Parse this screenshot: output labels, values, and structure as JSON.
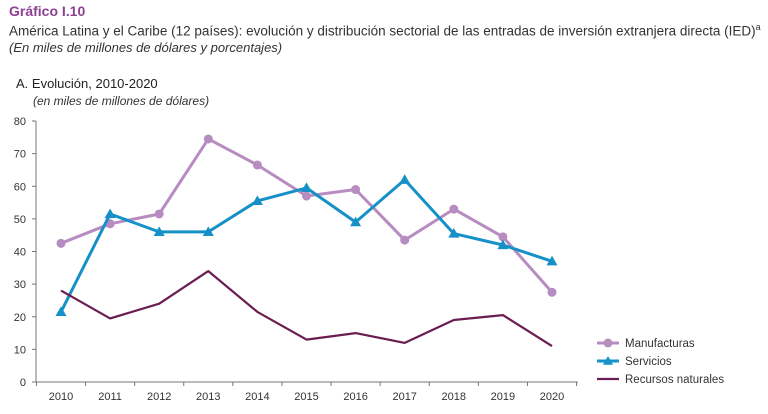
{
  "header": {
    "figure_label": "Gráfico I.10",
    "title": "América Latina y el Caribe (12 países): evolución y distribución sectorial de las entradas de inversión extranjera directa (IED)",
    "title_superscript": "a",
    "subtitle": "(En miles de millones de dólares y porcentajes)"
  },
  "panel": {
    "title": "A. Evolución, 2010-2020",
    "subtitle": "(en miles de millones de dólares)"
  },
  "chart_data": {
    "type": "line",
    "x": [
      "2010",
      "2011",
      "2012",
      "2013",
      "2014",
      "2015",
      "2016",
      "2017",
      "2018",
      "2019",
      "2020"
    ],
    "ylim": [
      0,
      80
    ],
    "yticks": [
      0,
      10,
      20,
      30,
      40,
      50,
      60,
      70,
      80
    ],
    "grid": false,
    "legend_position": "bottom-right",
    "series": [
      {
        "name": "Manufacturas",
        "color": "#b78cc0",
        "marker": "circle",
        "values": [
          42.5,
          48.5,
          51.5,
          74.5,
          66.5,
          57.0,
          59.0,
          43.5,
          53.0,
          44.5,
          27.5
        ]
      },
      {
        "name": "Servicios",
        "color": "#1591c8",
        "marker": "triangle",
        "values": [
          21.5,
          51.5,
          46.0,
          46.0,
          55.5,
          59.5,
          49.0,
          62.0,
          45.5,
          42.0,
          37.0
        ]
      },
      {
        "name": "Recursos naturales",
        "color": "#6b1d52",
        "marker": "none",
        "values": [
          28.0,
          19.5,
          24.0,
          34.0,
          21.5,
          13.0,
          15.0,
          12.0,
          19.0,
          20.5,
          11.0
        ]
      }
    ]
  }
}
